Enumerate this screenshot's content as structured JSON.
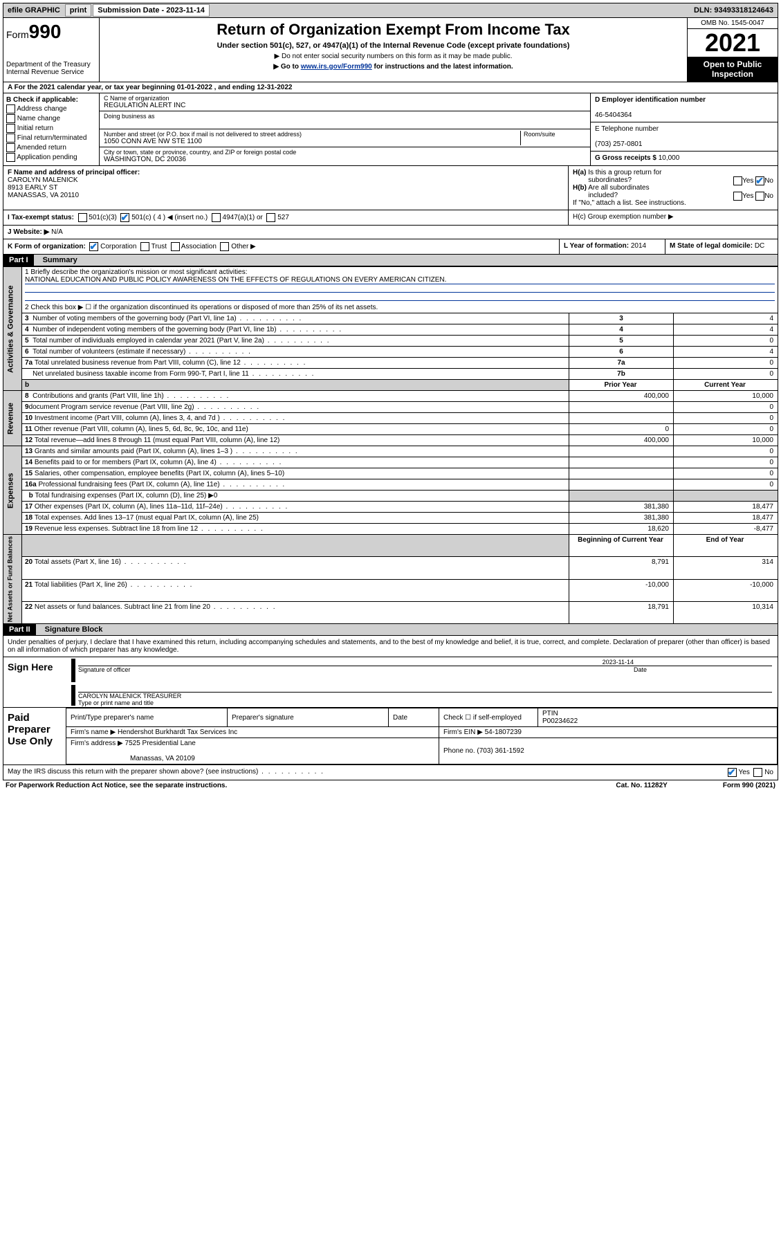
{
  "topbar": {
    "efile": "efile GRAPHIC",
    "print": "print",
    "subdate_lbl": "Submission Date - 2023-11-14",
    "dln": "DLN: 93493318124643"
  },
  "header": {
    "form_label": "Form",
    "form_num": "990",
    "dept": "Department of the Treasury",
    "irs": "Internal Revenue Service",
    "title": "Return of Organization Exempt From Income Tax",
    "sub1": "Under section 501(c), 527, or 4947(a)(1) of the Internal Revenue Code (except private foundations)",
    "sub2": "▶ Do not enter social security numbers on this form as it may be made public.",
    "sub3_pre": "▶ Go to ",
    "sub3_link": "www.irs.gov/Form990",
    "sub3_post": " for instructions and the latest information.",
    "omb": "OMB No. 1545-0047",
    "year": "2021",
    "open": "Open to Public Inspection"
  },
  "rowA": "A For the 2021 calendar year, or tax year beginning 01-01-2022    , and ending 12-31-2022",
  "colB": {
    "title": "B Check if applicable:",
    "opts": [
      "Address change",
      "Name change",
      "Initial return",
      "Final return/terminated",
      "Amended return",
      "Application pending"
    ]
  },
  "colC": {
    "name_lbl": "C Name of organization",
    "name": "REGULATION ALERT INC",
    "dba_lbl": "Doing business as",
    "addr_lbl": "Number and street (or P.O. box if mail is not delivered to street address)",
    "room_lbl": "Room/suite",
    "addr": "1050 CONN AVE NW STE 1100",
    "city_lbl": "City or town, state or province, country, and ZIP or foreign postal code",
    "city": "WASHINGTON, DC  20036"
  },
  "colD": {
    "d_lbl": "D Employer identification number",
    "ein": "46-5404364",
    "e_lbl": "E Telephone number",
    "phone": "(703) 257-0801",
    "g_lbl": "G Gross receipts $",
    "g_val": "10,000"
  },
  "rowF": {
    "f_lbl": "F  Name and address of principal officer:",
    "name": "CAROLYN MALENICK",
    "addr1": "8913 EARLY ST",
    "addr2": "MANASSAS, VA  20110",
    "ha": "H(a)  Is this a group return for subordinates?",
    "hb": "H(b)  Are all subordinates included?",
    "hb_note": "If \"No,\" attach a list. See instructions.",
    "hc": "H(c)  Group exemption number ▶",
    "yes": "Yes",
    "no": "No"
  },
  "rowI": {
    "lbl": "I    Tax-exempt status:",
    "c3": "501(c)(3)",
    "c4": "501(c) ( 4 ) ◀ (insert no.)",
    "a1": "4947(a)(1) or",
    "s527": "527"
  },
  "rowJ": {
    "lbl": "J   Website: ▶",
    "val": "N/A"
  },
  "rowK": {
    "lbl": "K Form of organization:",
    "opts": [
      "Corporation",
      "Trust",
      "Association",
      "Other ▶"
    ],
    "l_lbl": "L Year of formation:",
    "l_val": "2014",
    "m_lbl": "M State of legal domicile:",
    "m_val": "DC"
  },
  "part1": {
    "hdr": "Part I",
    "title": "Summary",
    "q1": "1   Briefly describe the organization's mission or most significant activities:",
    "q1v": "NATIONAL EDUCATION AND PUBLIC POLICY AWARENESS ON THE EFFECTS OF REGULATIONS ON EVERY AMERICAN CITIZEN.",
    "q2": "2   Check this box ▶ ☐  if the organization discontinued its operations or disposed of more than 25% of its net assets.",
    "lines_gov": [
      {
        "n": "3",
        "t": "Number of voting members of the governing body (Part VI, line 1a)",
        "k": "3",
        "v": "4"
      },
      {
        "n": "4",
        "t": "Number of independent voting members of the governing body (Part VI, line 1b)",
        "k": "4",
        "v": "4"
      },
      {
        "n": "5",
        "t": "Total number of individuals employed in calendar year 2021 (Part V, line 2a)",
        "k": "5",
        "v": "0"
      },
      {
        "n": "6",
        "t": "Total number of volunteers (estimate if necessary)",
        "k": "6",
        "v": "4"
      },
      {
        "n": "7a",
        "t": "Total unrelated business revenue from Part VIII, column (C), line 12",
        "k": "7a",
        "v": "0"
      },
      {
        "n": "",
        "t": "Net unrelated business taxable income from Form 990-T, Part I, line 11",
        "k": "7b",
        "v": "0"
      }
    ],
    "colhdr_prior": "Prior Year",
    "colhdr_curr": "Current Year",
    "revenue": [
      {
        "n": "8",
        "t": "Contributions and grants (Part VIII, line 1h)",
        "p": "400,000",
        "c": "10,000"
      },
      {
        "n": "9",
        "t": "Program service revenue (Part VIII, line 2g)",
        "p": "",
        "c": "0"
      },
      {
        "n": "10",
        "t": "Investment income (Part VIII, column (A), lines 3, 4, and 7d )",
        "p": "",
        "c": "0"
      },
      {
        "n": "11",
        "t": "Other revenue (Part VIII, column (A), lines 5, 6d, 8c, 9c, 10c, and 11e)",
        "p": "0",
        "c": "0"
      },
      {
        "n": "12",
        "t": "Total revenue—add lines 8 through 11 (must equal Part VIII, column (A), line 12)",
        "p": "400,000",
        "c": "10,000"
      }
    ],
    "expenses": [
      {
        "n": "13",
        "t": "Grants and similar amounts paid (Part IX, column (A), lines 1–3 )",
        "p": "",
        "c": "0"
      },
      {
        "n": "14",
        "t": "Benefits paid to or for members (Part IX, column (A), line 4)",
        "p": "",
        "c": "0"
      },
      {
        "n": "15",
        "t": "Salaries, other compensation, employee benefits (Part IX, column (A), lines 5–10)",
        "p": "",
        "c": "0"
      },
      {
        "n": "16a",
        "t": "Professional fundraising fees (Part IX, column (A), line 11e)",
        "p": "",
        "c": "0"
      },
      {
        "n": "b",
        "t": "Total fundraising expenses (Part IX, column (D), line 25) ▶0",
        "p": "GRAY",
        "c": "GRAY"
      },
      {
        "n": "17",
        "t": "Other expenses (Part IX, column (A), lines 11a–11d, 11f–24e)",
        "p": "381,380",
        "c": "18,477"
      },
      {
        "n": "18",
        "t": "Total expenses. Add lines 13–17 (must equal Part IX, column (A), line 25)",
        "p": "381,380",
        "c": "18,477"
      },
      {
        "n": "19",
        "t": "Revenue less expenses. Subtract line 18 from line 12",
        "p": "18,620",
        "c": "-8,477"
      }
    ],
    "nethdr_begin": "Beginning of Current Year",
    "nethdr_end": "End of Year",
    "net": [
      {
        "n": "20",
        "t": "Total assets (Part X, line 16)",
        "p": "8,791",
        "c": "314"
      },
      {
        "n": "21",
        "t": "Total liabilities (Part X, line 26)",
        "p": "-10,000",
        "c": "-10,000"
      },
      {
        "n": "22",
        "t": "Net assets or fund balances. Subtract line 21 from line 20",
        "p": "18,791",
        "c": "10,314"
      }
    ]
  },
  "part2": {
    "hdr": "Part II",
    "title": "Signature Block",
    "decl": "Under penalties of perjury, I declare that I have examined this return, including accompanying schedules and statements, and to the best of my knowledge and belief, it is true, correct, and complete. Declaration of preparer (other than officer) is based on all information of which preparer has any knowledge.",
    "sign_here": "Sign Here",
    "sig_officer": "Signature of officer",
    "sig_date": "2023-11-14",
    "date_lbl": "Date",
    "officer_name": "CAROLYN MALENICK TREASURER",
    "officer_type": "Type or print name and title",
    "paid": "Paid Preparer Use Only",
    "prep_name_lbl": "Print/Type preparer's name",
    "prep_sig_lbl": "Preparer's signature",
    "check_self": "Check ☐ if self-employed",
    "ptin_lbl": "PTIN",
    "ptin": "P00234622",
    "firm_name_lbl": "Firm's name   ▶",
    "firm_name": "Hendershot Burkhardt Tax Services Inc",
    "firm_ein_lbl": "Firm's EIN ▶",
    "firm_ein": "54-1807239",
    "firm_addr_lbl": "Firm's address ▶",
    "firm_addr1": "7525 Presidential Lane",
    "firm_addr2": "Manassas, VA  20109",
    "firm_phone_lbl": "Phone no.",
    "firm_phone": "(703) 361-1592",
    "may_irs": "May the IRS discuss this return with the preparer shown above? (see instructions)"
  },
  "footer": {
    "pra": "For Paperwork Reduction Act Notice, see the separate instructions.",
    "cat": "Cat. No. 11282Y",
    "form": "Form 990 (2021)"
  }
}
